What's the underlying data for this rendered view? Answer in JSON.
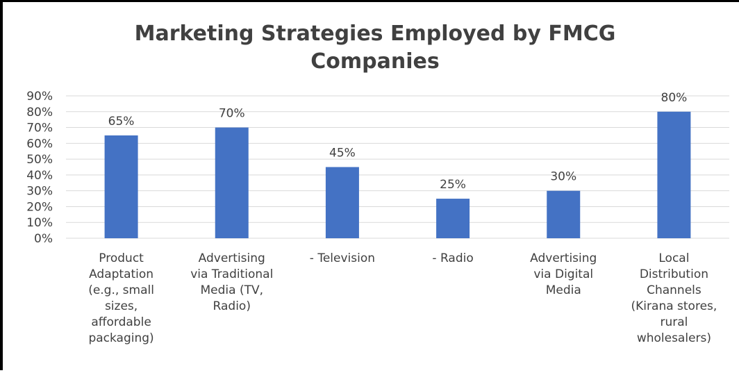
{
  "chart_data": {
    "type": "bar",
    "title": "Marketing Strategies Employed by FMCG Companies",
    "title_lines": [
      "Marketing Strategies Employed by FMCG",
      "Companies"
    ],
    "categories": [
      "Product Adaptation (e.g., small sizes, affordable packaging)",
      "Advertising via Traditional Media (TV, Radio)",
      "- Television",
      "- Radio",
      "Advertising via Digital Media",
      "Local Distribution Channels (Kirana stores, rural wholesalers)"
    ],
    "category_lines": [
      [
        "Product",
        "Adaptation",
        "(e.g., small",
        "sizes,",
        "affordable",
        "packaging)"
      ],
      [
        "Advertising",
        "via Traditional",
        "Media (TV,",
        "Radio)"
      ],
      [
        "- Television"
      ],
      [
        "- Radio"
      ],
      [
        "Advertising",
        "via Digital",
        "Media"
      ],
      [
        "Local",
        "Distribution",
        "Channels",
        "(Kirana stores,",
        "rural",
        "wholesalers)"
      ]
    ],
    "values": [
      65,
      70,
      45,
      25,
      30,
      80
    ],
    "data_labels": [
      "65%",
      "70%",
      "45%",
      "25%",
      "30%",
      "80%"
    ],
    "ylim": [
      0,
      90
    ],
    "yticks": [
      0,
      10,
      20,
      30,
      40,
      50,
      60,
      70,
      80,
      90
    ],
    "ytick_labels": [
      "0%",
      "10%",
      "20%",
      "30%",
      "40%",
      "50%",
      "60%",
      "70%",
      "80%",
      "90%"
    ],
    "xlabel": "",
    "ylabel": "",
    "grid": true,
    "legend": false,
    "colors": {
      "bar": "#4472C4",
      "grid": "#D9D9D9",
      "text": "#404040",
      "title": "#404040"
    }
  }
}
